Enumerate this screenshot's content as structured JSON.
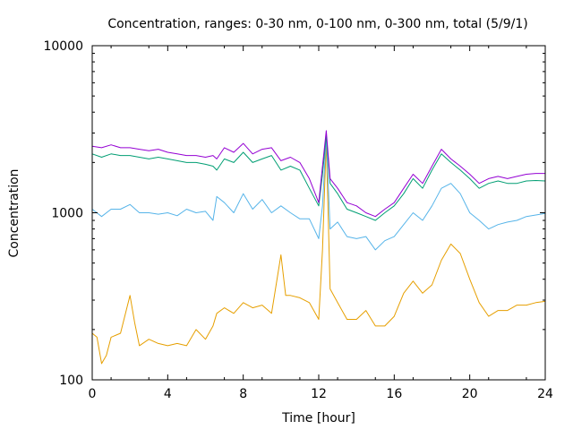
{
  "chart_data": {
    "type": "line",
    "title": "Concentration, ranges: 0-30 nm, 0-100 nm, 0-300 nm, total (5/9/1)",
    "xlabel": "Time [hour]",
    "ylabel": "Concentration",
    "x_ticks": [
      "0",
      "4",
      "8",
      "12",
      "16",
      "20",
      "24"
    ],
    "y_ticks": [
      "100",
      "1000",
      "10000"
    ],
    "xlim": [
      0,
      24
    ],
    "ylim": [
      100,
      10000
    ],
    "y_scale": "log",
    "grid": false,
    "legend": "none",
    "series": [
      {
        "color": "#e69f00",
        "x": [
          0,
          0.25,
          0.5,
          0.75,
          1,
          1.5,
          2,
          2.25,
          2.5,
          3,
          3.5,
          4,
          4.5,
          5,
          5.5,
          6,
          6.4,
          6.6,
          7,
          7.5,
          8,
          8.5,
          9,
          9.5,
          10,
          10.25,
          10.5,
          11,
          11.5,
          12,
          12.2,
          12.4,
          12.6,
          13,
          13.5,
          14,
          14.5,
          15,
          15.5,
          16,
          16.5,
          17,
          17.5,
          18,
          18.5,
          19,
          19.5,
          20,
          20.5,
          21,
          21.5,
          22,
          22.5,
          23,
          23.5,
          24
        ],
        "values": [
          190,
          180,
          125,
          140,
          180,
          190,
          320,
          220,
          160,
          175,
          165,
          160,
          165,
          160,
          200,
          175,
          210,
          250,
          270,
          250,
          290,
          270,
          280,
          250,
          560,
          320,
          320,
          310,
          290,
          230,
          600,
          2700,
          350,
          290,
          230,
          230,
          260,
          210,
          210,
          240,
          330,
          390,
          330,
          370,
          520,
          650,
          570,
          400,
          290,
          240,
          260,
          260,
          280,
          280,
          290,
          295
        ]
      },
      {
        "color": "#56b4e9",
        "x": [
          0,
          0.5,
          1,
          1.5,
          2,
          2.5,
          3,
          3.5,
          4,
          4.5,
          5,
          5.5,
          6,
          6.4,
          6.6,
          7,
          7.5,
          8,
          8.5,
          9,
          9.5,
          10,
          10.5,
          11,
          11.5,
          12,
          12.2,
          12.4,
          12.6,
          13,
          13.5,
          14,
          14.5,
          15,
          15.5,
          16,
          16.5,
          17,
          17.5,
          18,
          18.5,
          19,
          19.5,
          20,
          20.5,
          21,
          21.5,
          22,
          22.5,
          23,
          23.5,
          24
        ],
        "values": [
          1050,
          950,
          1050,
          1050,
          1120,
          1000,
          1000,
          980,
          1000,
          960,
          1050,
          1000,
          1020,
          900,
          1250,
          1150,
          1000,
          1300,
          1050,
          1200,
          1000,
          1100,
          1000,
          920,
          920,
          700,
          1100,
          2900,
          800,
          880,
          720,
          700,
          720,
          600,
          680,
          720,
          850,
          1000,
          900,
          1100,
          1400,
          1500,
          1300,
          1000,
          900,
          800,
          850,
          880,
          900,
          950,
          970,
          990
        ]
      },
      {
        "color": "#009e73",
        "x": [
          0,
          0.5,
          1,
          1.5,
          2,
          2.5,
          3,
          3.5,
          4,
          4.5,
          5,
          5.5,
          6,
          6.4,
          6.6,
          7,
          7.5,
          8,
          8.5,
          9,
          9.5,
          10,
          10.5,
          11,
          11.5,
          12,
          12.2,
          12.4,
          12.6,
          13,
          13.5,
          14,
          14.5,
          15,
          15.5,
          16,
          16.5,
          17,
          17.5,
          18,
          18.5,
          19,
          19.5,
          20,
          20.5,
          21,
          21.5,
          22,
          22.5,
          23,
          23.5,
          24
        ],
        "values": [
          2250,
          2150,
          2250,
          2200,
          2200,
          2150,
          2100,
          2150,
          2100,
          2050,
          2000,
          2000,
          1950,
          1900,
          1800,
          2100,
          2000,
          2300,
          2000,
          2100,
          2200,
          1800,
          1900,
          1800,
          1400,
          1100,
          1700,
          2900,
          1500,
          1300,
          1050,
          1000,
          950,
          900,
          1000,
          1100,
          1300,
          1600,
          1400,
          1800,
          2250,
          2000,
          1800,
          1600,
          1400,
          1500,
          1550,
          1500,
          1500,
          1550,
          1560,
          1550
        ]
      },
      {
        "color": "#9400d3",
        "x": [
          0,
          0.5,
          1,
          1.5,
          2,
          2.5,
          3,
          3.5,
          4,
          4.5,
          5,
          5.5,
          6,
          6.4,
          6.6,
          7,
          7.5,
          8,
          8.5,
          9,
          9.5,
          10,
          10.5,
          11,
          11.5,
          12,
          12.2,
          12.4,
          12.6,
          13,
          13.5,
          14,
          14.5,
          15,
          15.5,
          16,
          16.5,
          17,
          17.5,
          18,
          18.5,
          19,
          19.5,
          20,
          20.5,
          21,
          21.5,
          22,
          22.5,
          23,
          23.5,
          24
        ],
        "values": [
          2500,
          2450,
          2550,
          2450,
          2450,
          2400,
          2350,
          2400,
          2300,
          2250,
          2200,
          2200,
          2150,
          2200,
          2100,
          2450,
          2300,
          2600,
          2250,
          2400,
          2450,
          2050,
          2150,
          2000,
          1600,
          1150,
          1900,
          3100,
          1600,
          1400,
          1150,
          1100,
          1000,
          950,
          1050,
          1150,
          1400,
          1700,
          1500,
          1900,
          2400,
          2100,
          1900,
          1700,
          1500,
          1600,
          1650,
          1600,
          1650,
          1700,
          1720,
          1720
        ]
      }
    ]
  }
}
